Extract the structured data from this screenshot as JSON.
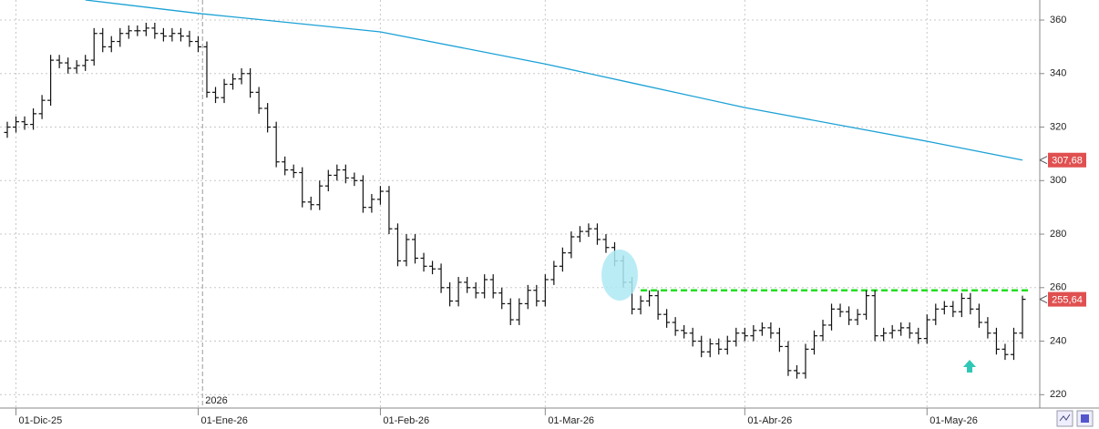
{
  "chart_data": {
    "type": "ohlc",
    "categories": [
      null,
      "01-Dic-25",
      null,
      null,
      null,
      null,
      null,
      null,
      null,
      null,
      null,
      null,
      null,
      null,
      null,
      null,
      null,
      null,
      null,
      null,
      null,
      null,
      "01-Ene-26",
      null,
      null,
      null,
      null,
      null,
      null,
      null,
      null,
      null,
      null,
      null,
      null,
      null,
      null,
      null,
      null,
      null,
      null,
      null,
      null,
      "01-Feb-26",
      null,
      null,
      null,
      null,
      null,
      null,
      null,
      null,
      null,
      null,
      null,
      null,
      null,
      null,
      null,
      null,
      null,
      null,
      "01-Mar-26",
      null,
      null,
      null,
      null,
      null,
      null,
      null,
      null,
      null,
      null,
      null,
      null,
      null,
      null,
      null,
      null,
      null,
      null,
      null,
      null,
      null,
      null,
      "01-Abr-26",
      null,
      null,
      null,
      null,
      null,
      null,
      null,
      null,
      null,
      null,
      null,
      null,
      null,
      null,
      null,
      null,
      null,
      null,
      null,
      null,
      "01-May-26",
      null,
      null,
      null,
      null,
      null,
      null,
      null,
      null,
      null,
      null,
      null
    ],
    "open": [
      318,
      320,
      322,
      321,
      325,
      330,
      345,
      344,
      342,
      343,
      345,
      355,
      350,
      352,
      355,
      356,
      356,
      357,
      355,
      354,
      355,
      354,
      352,
      350,
      333,
      331,
      336,
      338,
      340,
      333,
      327,
      320,
      307,
      304,
      303,
      292,
      291,
      298,
      302,
      304,
      301,
      300,
      290,
      293,
      296,
      282,
      270,
      278,
      271,
      268,
      267,
      260,
      255,
      262,
      260,
      258,
      263,
      258,
      254,
      248,
      254,
      259,
      255,
      263,
      268,
      273,
      279,
      281,
      282,
      278,
      275,
      270,
      262,
      252,
      255,
      257,
      250,
      247,
      244,
      243,
      240,
      236,
      239,
      237,
      240,
      243,
      242,
      244,
      245,
      243,
      238,
      229,
      228,
      237,
      242,
      246,
      252,
      251,
      248,
      250,
      257,
      242,
      243,
      244,
      245,
      243,
      241,
      248,
      252,
      253,
      251,
      256,
      252,
      247,
      243,
      237,
      235,
      243
    ],
    "high": [
      322,
      324,
      324,
      327,
      332,
      347,
      347,
      346,
      345,
      347,
      357,
      357,
      354,
      357,
      358,
      358,
      359,
      359,
      357,
      357,
      357,
      356,
      354,
      352,
      335,
      338,
      340,
      342,
      342,
      335,
      329,
      322,
      309,
      306,
      305,
      294,
      300,
      304,
      306,
      306,
      303,
      302,
      295,
      298,
      298,
      284,
      280,
      280,
      273,
      270,
      269,
      262,
      264,
      264,
      262,
      265,
      265,
      260,
      256,
      256,
      261,
      261,
      265,
      270,
      275,
      281,
      283,
      284,
      284,
      280,
      277,
      272,
      264,
      257,
      259,
      259,
      252,
      249,
      246,
      245,
      242,
      241,
      241,
      242,
      245,
      245,
      246,
      247,
      247,
      245,
      240,
      231,
      239,
      244,
      248,
      254,
      254,
      253,
      252,
      259,
      259,
      245,
      246,
      247,
      247,
      245,
      250,
      254,
      255,
      255,
      258,
      258,
      254,
      249,
      245,
      239,
      245,
      257
    ],
    "low": [
      316,
      318,
      319,
      319,
      323,
      328,
      342,
      340,
      340,
      341,
      343,
      348,
      348,
      350,
      353,
      354,
      354,
      353,
      352,
      352,
      352,
      350,
      348,
      331,
      329,
      329,
      334,
      336,
      331,
      325,
      318,
      305,
      302,
      301,
      290,
      289,
      289,
      296,
      300,
      299,
      298,
      288,
      288,
      291,
      280,
      268,
      268,
      269,
      266,
      265,
      258,
      253,
      253,
      258,
      256,
      256,
      256,
      252,
      246,
      246,
      252,
      253,
      253,
      261,
      266,
      271,
      277,
      279,
      276,
      273,
      268,
      260,
      250,
      250,
      253,
      248,
      245,
      242,
      241,
      238,
      234,
      234,
      235,
      235,
      238,
      240,
      240,
      242,
      241,
      236,
      227,
      226,
      226,
      235,
      240,
      244,
      249,
      246,
      246,
      248,
      240,
      240,
      241,
      242,
      241,
      239,
      239,
      246,
      250,
      249,
      249,
      250,
      245,
      241,
      235,
      233,
      233,
      241
    ],
    "close": [
      320,
      322,
      321,
      325,
      330,
      345,
      344,
      342,
      343,
      345,
      355,
      350,
      352,
      355,
      356,
      356,
      357,
      355,
      354,
      355,
      354,
      352,
      350,
      333,
      331,
      336,
      338,
      340,
      333,
      327,
      320,
      307,
      304,
      303,
      292,
      291,
      298,
      302,
      304,
      301,
      300,
      290,
      293,
      296,
      282,
      270,
      278,
      271,
      268,
      267,
      260,
      255,
      262,
      260,
      258,
      263,
      258,
      254,
      248,
      254,
      259,
      255,
      263,
      268,
      273,
      279,
      281,
      282,
      278,
      275,
      270,
      262,
      252,
      255,
      257,
      250,
      247,
      244,
      243,
      240,
      236,
      239,
      237,
      240,
      243,
      242,
      244,
      245,
      243,
      238,
      229,
      228,
      237,
      242,
      246,
      252,
      251,
      248,
      250,
      257,
      242,
      243,
      244,
      245,
      243,
      241,
      248,
      252,
      253,
      251,
      256,
      252,
      247,
      243,
      237,
      235,
      243,
      255.64
    ],
    "color": "#111111",
    "moving_average": {
      "color": "#1ba1d6",
      "x": [
        9,
        22,
        43,
        62,
        72,
        85,
        106,
        117
      ],
      "values": [
        367.5,
        362.5,
        355.6,
        343.6,
        336.5,
        327.3,
        314.7,
        307.68
      ]
    },
    "resistance": {
      "value": 259,
      "color": "#22dd22",
      "x": [
        73,
        118
      ]
    },
    "price_tags": [
      {
        "value": 307.68,
        "label": "307,68"
      },
      {
        "value": 255.64,
        "label": "255,64"
      }
    ],
    "year_marker": {
      "label": "2026",
      "x": 22.5
    },
    "ylim": [
      215,
      367.5
    ],
    "yticks": [
      220,
      240,
      260,
      280,
      300,
      320,
      340,
      360
    ],
    "grid": true
  }
}
